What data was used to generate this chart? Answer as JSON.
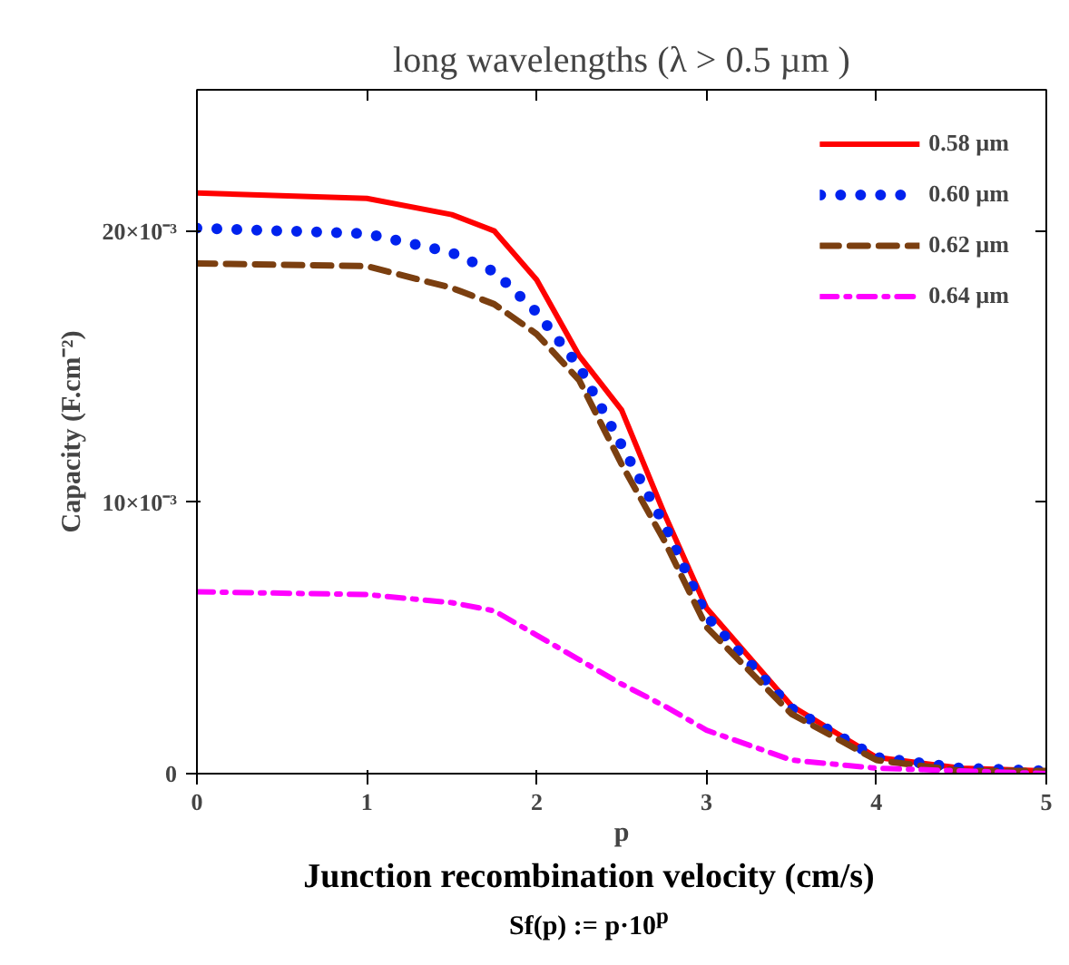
{
  "chart_data": {
    "type": "line",
    "title": "long wavelengths (λ > 0.5 µm )",
    "xlabel": "p",
    "ylabel": "Capacity (F.cm⁻²)",
    "annotations": [
      "Junction recombination velocity (cm/s)",
      "Sf(p) := p·10$^{p}$"
    ],
    "x": [
      0,
      1,
      1.5,
      1.75,
      2,
      2.25,
      2.5,
      2.75,
      3,
      3.5,
      4,
      4.5,
      5
    ],
    "series": [
      {
        "name": "0.58 µm",
        "color": "#ff0000",
        "line_style": "solid",
        "values": [
          0.0214,
          0.0212,
          0.0206,
          0.02,
          0.0182,
          0.0154,
          0.0134,
          0.0096,
          0.0061,
          0.0025,
          0.0006,
          0.0002,
          0.0001
        ]
      },
      {
        "name": "0.60 µm",
        "color": "#0022ee",
        "line_style": "dotted",
        "values": [
          0.0201,
          0.0199,
          0.0192,
          0.0185,
          0.017,
          0.015,
          0.0121,
          0.0092,
          0.0058,
          0.0024,
          0.0006,
          0.0002,
          0.0001
        ]
      },
      {
        "name": "0.62 µm",
        "color": "#7b3f10",
        "line_style": "dashed",
        "values": [
          0.0188,
          0.0187,
          0.0179,
          0.0173,
          0.0162,
          0.0145,
          0.0114,
          0.0086,
          0.0054,
          0.0022,
          0.0005,
          0.0001,
          0.0001
        ]
      },
      {
        "name": "0.64 µm",
        "color": "#ff00ff",
        "line_style": "dashdot",
        "values": [
          0.0067,
          0.0066,
          0.0063,
          0.006,
          0.0051,
          0.0042,
          0.0033,
          0.0025,
          0.0016,
          0.0005,
          0.0002,
          0.0001,
          0
        ]
      }
    ],
    "xlim": [
      0,
      5
    ],
    "xticks": [
      0,
      1,
      2,
      3,
      4,
      5
    ],
    "ylim": [
      0,
      0.0252
    ],
    "yticks": [
      {
        "value": 0,
        "label": "0"
      },
      {
        "value": 0.01,
        "label": "10×10⁻³"
      },
      {
        "value": 0.02,
        "label": "20×10⁻³"
      }
    ],
    "grid": false,
    "legend": "top right",
    "marker": "none"
  }
}
